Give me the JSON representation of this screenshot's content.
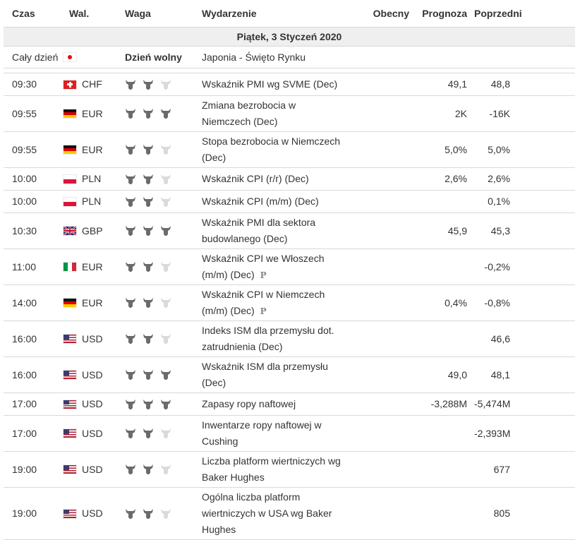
{
  "columns": {
    "time": "Czas",
    "currency": "Wal.",
    "importance": "Waga",
    "event": "Wydarzenie",
    "actual": "Obecny",
    "forecast": "Prognoza",
    "previous": "Poprzedni"
  },
  "day_header": "Piątek, 3 Styczeń 2020",
  "holiday": {
    "time": "Cały dzień",
    "flag": "jp",
    "label": "Dzień wolny",
    "event": "Japonia - Święto Rynku"
  },
  "rows": [
    {
      "time": "09:30",
      "flag": "ch",
      "currency": "CHF",
      "importance": 2,
      "event_l1": "Wskaźnik PMI wg SVME (Dec)",
      "event_l2": "",
      "actual": "",
      "forecast": "49,1",
      "previous": "48,8"
    },
    {
      "time": "09:55",
      "flag": "de",
      "currency": "EUR",
      "importance": 3,
      "event_l1": "Zmiana bezrobocia w",
      "event_l2": "Niemczech (Dec)",
      "actual": "",
      "forecast": "2K",
      "previous": "-16K"
    },
    {
      "time": "09:55",
      "flag": "de",
      "currency": "EUR",
      "importance": 2,
      "event_l1": "Stopa bezrobocia w Niemczech",
      "event_l2": "(Dec)",
      "actual": "",
      "forecast": "5,0%",
      "previous": "5,0%"
    },
    {
      "time": "10:00",
      "flag": "pl",
      "currency": "PLN",
      "importance": 2,
      "event_l1": "Wskaźnik CPI (r/r) (Dec)",
      "event_l2": "",
      "actual": "",
      "forecast": "2,6%",
      "previous": "2,6%"
    },
    {
      "time": "10:00",
      "flag": "pl",
      "currency": "PLN",
      "importance": 2,
      "event_l1": "Wskaźnik CPI (m/m) (Dec)",
      "event_l2": "",
      "actual": "",
      "forecast": "",
      "previous": "0,1%"
    },
    {
      "time": "10:30",
      "flag": "gb",
      "currency": "GBP",
      "importance": 3,
      "event_l1": "Wskaźnik PMI dla sektora",
      "event_l2": "budowlanego (Dec)",
      "actual": "",
      "forecast": "45,9",
      "previous": "45,3"
    },
    {
      "time": "11:00",
      "flag": "it",
      "currency": "EUR",
      "importance": 2,
      "event_l1": "Wskaźnik CPI we Włoszech",
      "event_l2": "(m/m) (Dec)",
      "prelim": "P",
      "actual": "",
      "forecast": "",
      "previous": "-0,2%"
    },
    {
      "time": "14:00",
      "flag": "de",
      "currency": "EUR",
      "importance": 2,
      "event_l1": "Wskaźnik CPI w Niemczech",
      "event_l2": "(m/m) (Dec)",
      "prelim": "P",
      "actual": "",
      "forecast": "0,4%",
      "previous": "-0,8%"
    },
    {
      "time": "16:00",
      "flag": "us",
      "currency": "USD",
      "importance": 2,
      "event_l1": "Indeks ISM dla przemysłu dot.",
      "event_l2": "zatrudnienia (Dec)",
      "actual": "",
      "forecast": "",
      "previous": "46,6"
    },
    {
      "time": "16:00",
      "flag": "us",
      "currency": "USD",
      "importance": 3,
      "event_l1": "Wskaźnik ISM dla przemysłu",
      "event_l2": "(Dec)",
      "actual": "",
      "forecast": "49,0",
      "previous": "48,1"
    },
    {
      "time": "17:00",
      "flag": "us",
      "currency": "USD",
      "importance": 3,
      "event_l1": "Zapasy ropy naftowej",
      "event_l2": "",
      "actual": "",
      "forecast": "-3,288M",
      "previous": "-5,474M"
    },
    {
      "time": "17:00",
      "flag": "us",
      "currency": "USD",
      "importance": 2,
      "event_l1": "Inwentarze ropy naftowej w",
      "event_l2": "Cushing",
      "actual": "",
      "forecast": "",
      "previous": "-2,393M"
    },
    {
      "time": "19:00",
      "flag": "us",
      "currency": "USD",
      "importance": 2,
      "event_l1": "Liczba platform wiertniczych wg",
      "event_l2": "Baker Hughes",
      "actual": "",
      "forecast": "",
      "previous": "677"
    },
    {
      "time": "19:00",
      "flag": "us",
      "currency": "USD",
      "importance": 2,
      "event_l1": "Ogólna liczba platform",
      "event_l2": "wiertniczych w USA wg Baker",
      "event_l3": "Hughes",
      "actual": "",
      "forecast": "",
      "previous": "805"
    }
  ]
}
